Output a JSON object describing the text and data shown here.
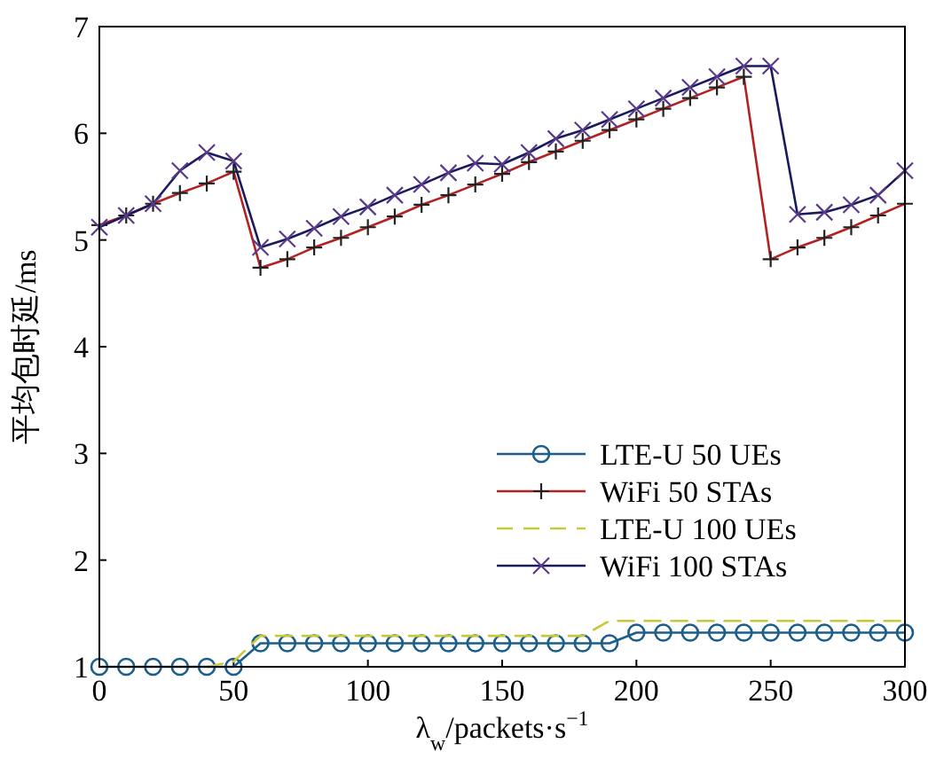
{
  "chart_data": {
    "type": "line",
    "xlabel": "λ$_{w}$/packets·s$^{−1}$",
    "ylabel": "平均包时延/ms",
    "x": [
      0,
      10,
      20,
      30,
      40,
      50,
      60,
      70,
      80,
      90,
      100,
      110,
      120,
      130,
      140,
      150,
      160,
      170,
      180,
      190,
      200,
      210,
      220,
      230,
      240,
      250,
      260,
      270,
      280,
      290,
      300
    ],
    "xlim": [
      0,
      300
    ],
    "xticks": [
      0,
      50,
      100,
      150,
      200,
      250,
      300
    ],
    "ylim": [
      1,
      7
    ],
    "yticks": [
      1,
      2,
      3,
      4,
      5,
      6,
      7
    ],
    "grid": false,
    "legend": "bottom right",
    "series": [
      {
        "name": "LTE-U 50 UEs",
        "color": "#1b5e8c",
        "marker": "circle",
        "line_style": "solid",
        "values": [
          1.0,
          1.0,
          1.0,
          1.0,
          1.0,
          1.0,
          1.22,
          1.22,
          1.22,
          1.22,
          1.22,
          1.22,
          1.22,
          1.22,
          1.22,
          1.22,
          1.22,
          1.22,
          1.22,
          1.22,
          1.32,
          1.32,
          1.32,
          1.32,
          1.32,
          1.32,
          1.32,
          1.32,
          1.32,
          1.32,
          1.32
        ]
      },
      {
        "name": "WiFi 50 STAs",
        "color": "#b22222",
        "marker": "cross",
        "line_style": "solid",
        "values": [
          5.14,
          5.23,
          5.34,
          5.44,
          5.53,
          5.64,
          4.74,
          4.82,
          4.93,
          5.02,
          5.12,
          5.22,
          5.33,
          5.42,
          5.52,
          5.62,
          5.73,
          5.83,
          5.93,
          6.03,
          6.13,
          6.23,
          6.33,
          6.43,
          6.53,
          4.82,
          4.93,
          5.02,
          5.12,
          5.23,
          5.34
        ]
      },
      {
        "name": "LTE-U 100 UEs",
        "color": "#c8c83c",
        "marker": "none",
        "line_style": "dashed",
        "values": [
          null,
          null,
          null,
          null,
          1.0,
          1.05,
          1.29,
          1.29,
          1.29,
          1.29,
          1.29,
          1.29,
          1.29,
          1.29,
          1.29,
          1.29,
          1.29,
          1.29,
          1.29,
          1.43,
          1.43,
          1.43,
          1.43,
          1.43,
          1.43,
          1.43,
          1.43,
          1.43,
          1.43,
          1.43,
          1.43
        ]
      },
      {
        "name": "WiFi 100 STAs",
        "color": "#1a1a5e",
        "marker": "x",
        "line_style": "solid",
        "values": [
          5.12,
          5.23,
          5.34,
          5.65,
          5.82,
          5.74,
          4.93,
          5.01,
          5.11,
          5.22,
          5.31,
          5.42,
          5.52,
          5.63,
          5.72,
          5.71,
          5.82,
          5.95,
          6.03,
          6.13,
          6.23,
          6.33,
          6.43,
          6.53,
          6.63,
          6.63,
          5.24,
          5.26,
          5.33,
          5.42,
          5.65
        ]
      }
    ]
  }
}
